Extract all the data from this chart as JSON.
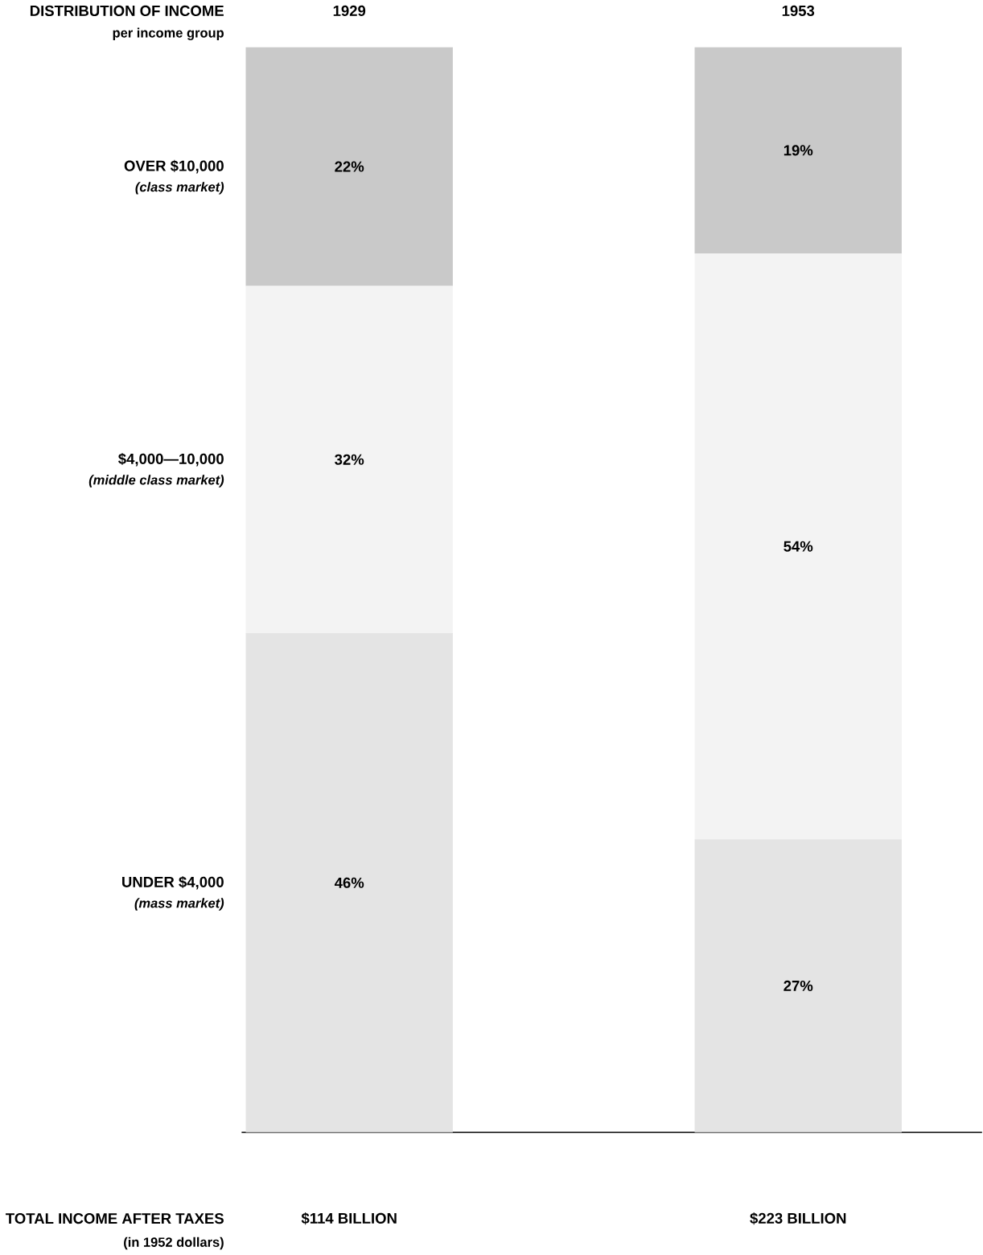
{
  "chart_data": {
    "type": "bar",
    "stacked": true,
    "title": "DISTRIBUTION OF INCOME",
    "subtitle": "per income group",
    "categories": [
      "1929",
      "1953"
    ],
    "series": [
      {
        "name": "UNDER $4,000",
        "color": "#e4e4e4",
        "values": [
          46,
          27
        ],
        "value_labels": [
          "46%",
          "27%"
        ]
      },
      {
        "name": "$4,000—10,000",
        "color": "#f3f3f3",
        "values": [
          32,
          54
        ],
        "value_labels": [
          "32%",
          "54%"
        ]
      },
      {
        "name": "OVER $10,000",
        "color": "#c9c9c9",
        "values": [
          22,
          19
        ],
        "value_labels": [
          "22%",
          "19%"
        ]
      }
    ],
    "annotations": [
      "(mass market)",
      "(middle class market)",
      "(class market)",
      "TOTAL INCOME AFTER TAXES",
      "(in 1952 dollars)",
      "$114 BILLION",
      "$223 BILLION"
    ]
  }
}
